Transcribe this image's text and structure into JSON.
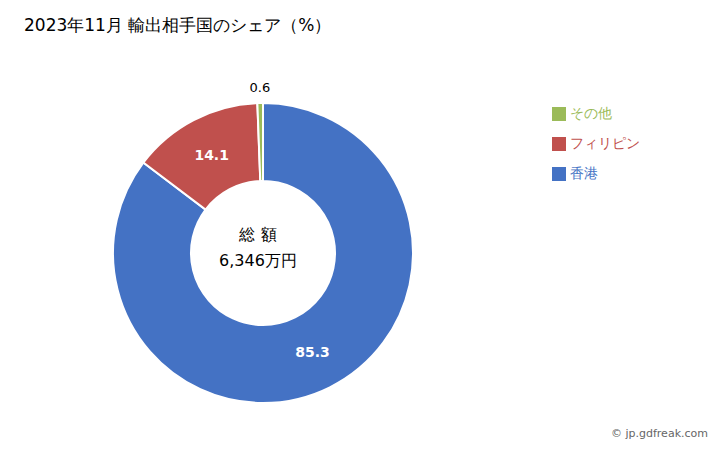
{
  "chart_data": {
    "type": "pie",
    "title": "2023年11月 輸出相手国のシェア（%）",
    "categories": [
      "香港",
      "フィリピン",
      "その他"
    ],
    "values": [
      85.3,
      14.1,
      0.6
    ],
    "colors": [
      "#4472C4",
      "#C0504D",
      "#9BBB59"
    ],
    "data_labels": true,
    "legend": "right",
    "annotations": [
      "総 額",
      "6,346万円",
      "© jp.gdfreak.com"
    ]
  }
}
